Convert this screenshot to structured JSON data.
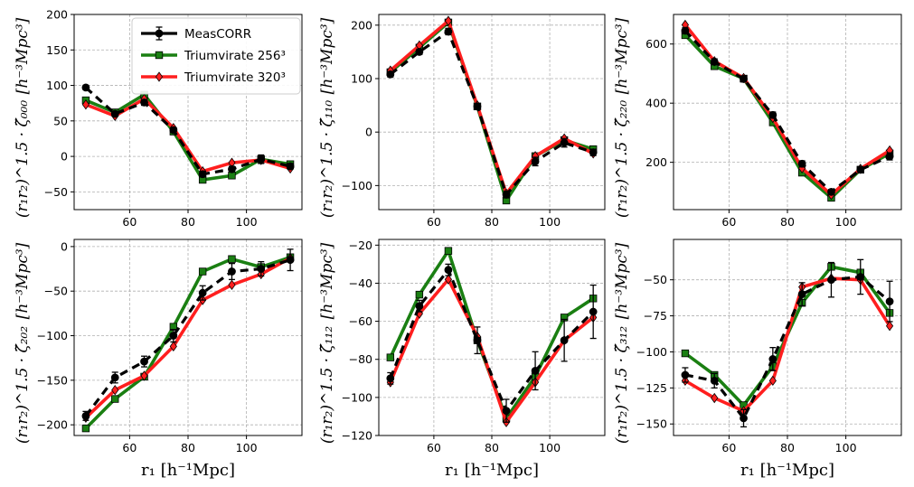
{
  "figure": {
    "x_axis_label": "r₁   [h⁻¹Mpc]",
    "legend": [
      {
        "label": "MeasCORR",
        "color": "#000000",
        "marker": "circle",
        "dash": true,
        "errorbars": true
      },
      {
        "label": "Triumvirate 256³",
        "color": "#1a7f12",
        "marker": "square",
        "dash": false
      },
      {
        "label": "Triumvirate 320³",
        "color": "#ff1e1e",
        "marker": "diamond",
        "dash": false
      }
    ]
  },
  "chart_data": [
    {
      "type": "line",
      "title": "",
      "ylabel_left": "(r₁r₂)^1.5 · ζ̃₀₀₀",
      "ylabel_right": "[h⁻³Mpc³]",
      "x": [
        45,
        55,
        65,
        75,
        85,
        95,
        105,
        115
      ],
      "xlim": [
        41,
        119
      ],
      "ylim": [
        -75,
        200
      ],
      "xticks": [
        60,
        80,
        100
      ],
      "xtick_labels": [
        "60",
        "80",
        "100"
      ],
      "yticks": [
        -50,
        0,
        50,
        100,
        150,
        200
      ],
      "ytick_labels": [
        "−50",
        "0",
        "50",
        "100",
        "150",
        "200"
      ],
      "legend_position": "top-center",
      "series": [
        {
          "name": "MeasCORR",
          "values": [
            97,
            60,
            76,
            37,
            -25,
            -18,
            -4,
            -14
          ],
          "errors": [
            3,
            3,
            4,
            3,
            4,
            4,
            6,
            4
          ]
        },
        {
          "name": "Triumvirate 256³",
          "values": [
            79,
            62,
            87,
            35,
            -33,
            -27,
            -4,
            -11
          ]
        },
        {
          "name": "Triumvirate 320³",
          "values": [
            73,
            57,
            81,
            40,
            -21,
            -9,
            -5,
            -17
          ]
        }
      ]
    },
    {
      "type": "line",
      "title": "",
      "ylabel_left": "(r₁r₂)^1.5 · ζ̃₁₁₀",
      "ylabel_right": "[h⁻³Mpc³]",
      "x": [
        45,
        55,
        65,
        75,
        85,
        95,
        105,
        115
      ],
      "xlim": [
        41,
        119
      ],
      "ylim": [
        -145,
        220
      ],
      "xticks": [
        60,
        80,
        100
      ],
      "xtick_labels": [
        "60",
        "80",
        "100"
      ],
      "yticks": [
        -100,
        0,
        100,
        200
      ],
      "ytick_labels": [
        "−100",
        "0",
        "100",
        "200"
      ],
      "series": [
        {
          "name": "MeasCORR",
          "values": [
            108,
            150,
            188,
            48,
            -117,
            -55,
            -20,
            -38
          ],
          "errors": [
            5,
            5,
            6,
            5,
            6,
            8,
            8,
            6
          ]
        },
        {
          "name": "Triumvirate 256³",
          "values": [
            112,
            158,
            205,
            48,
            -128,
            -45,
            -15,
            -32
          ]
        },
        {
          "name": "Triumvirate 320³",
          "values": [
            115,
            162,
            208,
            50,
            -115,
            -45,
            -12,
            -40
          ]
        }
      ]
    },
    {
      "type": "line",
      "title": "",
      "ylabel_left": "(r₁r₂)^1.5 · ζ̃₂₂₀",
      "ylabel_right": "[h⁻³Mpc³]",
      "x": [
        45,
        55,
        65,
        75,
        85,
        95,
        105,
        115
      ],
      "xlim": [
        41,
        119
      ],
      "ylim": [
        40,
        700
      ],
      "xticks": [
        60,
        80,
        100
      ],
      "xtick_labels": [
        "60",
        "80",
        "100"
      ],
      "yticks": [
        200,
        400,
        600
      ],
      "ytick_labels": [
        "200",
        "400",
        "600"
      ],
      "series": [
        {
          "name": "MeasCORR",
          "values": [
            645,
            540,
            482,
            360,
            195,
            100,
            175,
            220
          ],
          "errors": [
            10,
            10,
            10,
            10,
            10,
            8,
            10,
            12
          ]
        },
        {
          "name": "Triumvirate 256³",
          "values": [
            630,
            525,
            483,
            335,
            165,
            80,
            175,
            230
          ]
        },
        {
          "name": "Triumvirate 320³",
          "values": [
            665,
            542,
            485,
            350,
            180,
            90,
            178,
            240
          ]
        }
      ]
    },
    {
      "type": "line",
      "title": "",
      "ylabel_left": "(r₁r₂)^1.5 · ζ̃₂₀₂",
      "ylabel_right": "[h⁻³Mpc³]",
      "x": [
        45,
        55,
        65,
        75,
        85,
        95,
        105,
        115
      ],
      "xlim": [
        41,
        119
      ],
      "ylim": [
        -212,
        8
      ],
      "xticks": [
        60,
        80,
        100
      ],
      "xtick_labels": [
        "60",
        "80",
        "100"
      ],
      "yticks": [
        -200,
        -150,
        -100,
        -50,
        0
      ],
      "ytick_labels": [
        "−200",
        "−150",
        "−100",
        "−50",
        "0"
      ],
      "series": [
        {
          "name": "MeasCORR",
          "values": [
            -190,
            -147,
            -129,
            -100,
            -52,
            -28,
            -25,
            -15
          ],
          "errors": [
            5,
            6,
            6,
            7,
            8,
            9,
            8,
            12
          ]
        },
        {
          "name": "Triumvirate 256³",
          "values": [
            -204,
            -171,
            -146,
            -90,
            -28,
            -14,
            -23,
            -12
          ]
        },
        {
          "name": "Triumvirate 320³",
          "values": [
            -192,
            -161,
            -145,
            -112,
            -60,
            -43,
            -31,
            -13
          ]
        }
      ]
    },
    {
      "type": "line",
      "title": "",
      "ylabel_left": "(r₁r₂)^1.5 · ζ̃₁₁₂",
      "ylabel_right": "[h⁻³Mpc³]",
      "x": [
        45,
        55,
        65,
        75,
        85,
        95,
        105,
        115
      ],
      "xlim": [
        41,
        119
      ],
      "ylim": [
        -120,
        -17
      ],
      "xticks": [
        60,
        80,
        100
      ],
      "xtick_labels": [
        "60",
        "80",
        "100"
      ],
      "yticks": [
        -120,
        -100,
        -80,
        -60,
        -40,
        -20
      ],
      "ytick_labels": [
        "−120",
        "−100",
        "−80",
        "−60",
        "−40",
        "−20"
      ],
      "series": [
        {
          "name": "MeasCORR",
          "values": [
            -90,
            -52,
            -33,
            -70,
            -107,
            -86,
            -70,
            -55
          ],
          "errors": [
            3,
            3,
            3,
            7,
            6,
            10,
            11,
            14
          ]
        },
        {
          "name": "Triumvirate 256³",
          "values": [
            -79,
            -46,
            -23,
            -70,
            -111,
            -89,
            -58,
            -48
          ]
        },
        {
          "name": "Triumvirate 320³",
          "values": [
            -92,
            -56,
            -38,
            -68,
            -113,
            -92,
            -70,
            -58
          ]
        }
      ]
    },
    {
      "type": "line",
      "title": "",
      "ylabel_left": "(r₁r₂)^1.5 · ζ̃₃₁₂",
      "ylabel_right": "[h⁻³Mpc³]",
      "x": [
        45,
        55,
        65,
        75,
        85,
        95,
        105,
        115
      ],
      "xlim": [
        41,
        119
      ],
      "ylim": [
        -158,
        -22
      ],
      "xticks": [
        60,
        80,
        100
      ],
      "xtick_labels": [
        "60",
        "80",
        "100"
      ],
      "yticks": [
        -150,
        -125,
        -100,
        -75,
        -50
      ],
      "ytick_labels": [
        "−150",
        "−125",
        "−100",
        "−75",
        "−50"
      ],
      "series": [
        {
          "name": "MeasCORR",
          "values": [
            -116,
            -120,
            -146,
            -105,
            -60,
            -50,
            -48,
            -65
          ],
          "errors": [
            5,
            5,
            6,
            8,
            8,
            12,
            12,
            14
          ]
        },
        {
          "name": "Triumvirate 256³",
          "values": [
            -101,
            -116,
            -137,
            -110,
            -66,
            -41,
            -45,
            -73
          ]
        },
        {
          "name": "Triumvirate 320³",
          "values": [
            -120,
            -132,
            -141,
            -120,
            -55,
            -49,
            -50,
            -82
          ]
        }
      ]
    }
  ]
}
